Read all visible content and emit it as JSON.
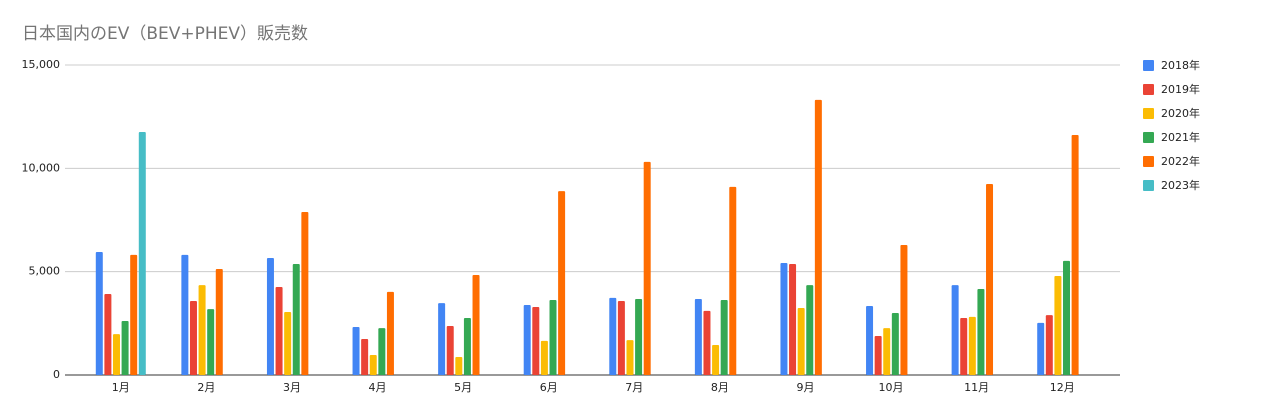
{
  "chart_data": {
    "type": "bar",
    "title": "日本国内のEV（BEV+PHEV）販売数",
    "categories": [
      "1月",
      "2月",
      "3月",
      "4月",
      "5月",
      "6月",
      "7月",
      "8月",
      "9月",
      "10月",
      "11月",
      "12月"
    ],
    "series": [
      {
        "name": "2018年",
        "color": "#4285f4",
        "values": [
          5950,
          5810,
          5660,
          2320,
          3480,
          3390,
          3730,
          3680,
          5420,
          3340,
          4350,
          2520
        ]
      },
      {
        "name": "2019年",
        "color": "#ea4335",
        "values": [
          3920,
          3580,
          4260,
          1740,
          2370,
          3290,
          3580,
          3100,
          5370,
          1890,
          2760,
          2900
        ]
      },
      {
        "name": "2020年",
        "color": "#fbbc04",
        "values": [
          1980,
          4350,
          3050,
          970,
          870,
          1650,
          1690,
          1450,
          3240,
          2270,
          2810,
          4790
        ]
      },
      {
        "name": "2021年",
        "color": "#34a853",
        "values": [
          2610,
          3190,
          5370,
          2270,
          2760,
          3630,
          3680,
          3630,
          4350,
          3000,
          4160,
          5520
        ]
      },
      {
        "name": "2022年",
        "color": "#ff6d01",
        "values": [
          5810,
          5130,
          7890,
          4020,
          4840,
          8900,
          10310,
          9100,
          13310,
          6290,
          9240,
          11610
        ]
      },
      {
        "name": "2023年",
        "color": "#46bdc6",
        "values": [
          11760,
          null,
          null,
          null,
          null,
          null,
          null,
          null,
          null,
          null,
          null,
          null
        ]
      }
    ],
    "ylim": [
      0,
      15000
    ],
    "yticks": [
      0,
      {
        "value": 5000,
        "label": "5,000"
      },
      {
        "value": 10000,
        "label": "10,000"
      },
      {
        "value": 15000,
        "label": "15,000"
      }
    ],
    "grid": true,
    "legend": "right"
  }
}
